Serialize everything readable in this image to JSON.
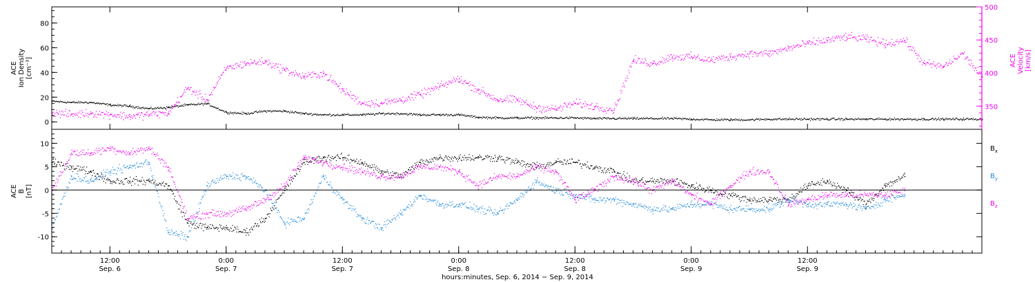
{
  "chart_data": [
    {
      "type": "scatter",
      "panel": "top",
      "ylabel": [
        "ACE",
        "Ion Density",
        "[cm⁻³]"
      ],
      "y2label": [
        "ACE",
        "Velocity",
        "[km/s]"
      ],
      "ylim": [
        -6,
        93
      ],
      "yticks": [
        0,
        20,
        40,
        60,
        80
      ],
      "y2lim": [
        315,
        500
      ],
      "y2ticks": [
        350,
        400,
        450,
        500
      ],
      "series": [
        {
          "axis": "left",
          "color": "#000000",
          "x": [
            0,
            2,
            4,
            6,
            8,
            10,
            12,
            14,
            16,
            18,
            20,
            22,
            24,
            26,
            28,
            30,
            32,
            34,
            36,
            38,
            40,
            42,
            44,
            46,
            48,
            50,
            52,
            54,
            56,
            58,
            60,
            62,
            64,
            66,
            68,
            70,
            72,
            74,
            76,
            78,
            80,
            82,
            84,
            86,
            88,
            90,
            92,
            94,
            96
          ],
          "values": [
            17,
            16,
            16,
            14,
            13,
            11,
            12,
            14,
            15,
            8,
            7,
            9,
            9,
            7,
            6,
            6,
            6,
            7,
            7,
            6,
            6,
            6,
            4,
            3.5,
            3.5,
            3.5,
            3.5,
            3.5,
            3,
            3,
            3,
            3,
            3,
            2.5,
            2,
            2,
            2,
            2.5,
            2.5,
            2.5,
            2.5,
            2.5,
            2.5,
            2.5,
            2.5,
            2.5,
            2.5,
            2.5,
            2.5
          ]
        },
        {
          "axis": "right",
          "color": "#ee00ee",
          "x": [
            0,
            2,
            4,
            6,
            8,
            10,
            12,
            14,
            16,
            18,
            20,
            22,
            24,
            26,
            28,
            30,
            32,
            34,
            36,
            38,
            40,
            42,
            44,
            46,
            48,
            50,
            52,
            54,
            56,
            58,
            60,
            62,
            64,
            66,
            68,
            70,
            72,
            74,
            76,
            78,
            80,
            82,
            84,
            86,
            88,
            90,
            92,
            94,
            96
          ],
          "values": [
            340,
            338,
            340,
            338,
            335,
            338,
            340,
            378,
            360,
            408,
            415,
            418,
            405,
            395,
            400,
            375,
            355,
            355,
            360,
            368,
            380,
            392,
            375,
            360,
            360,
            348,
            346,
            355,
            350,
            345,
            420,
            415,
            425,
            425,
            420,
            425,
            430,
            430,
            438,
            445,
            450,
            455,
            452,
            445,
            450,
            415,
            410,
            430,
            395
          ]
        }
      ]
    },
    {
      "type": "scatter",
      "panel": "bottom",
      "ylabel": [
        "ACE",
        "B",
        "[nT]"
      ],
      "ylim": [
        -13.5,
        13
      ],
      "yticks": [
        -10,
        -5,
        0,
        5,
        10
      ],
      "zero_line": true,
      "legend_position": "right",
      "xlabel": "hours:minutes, Sep.  6, 2014 − Sep.  9, 2014",
      "xlim": [
        0,
        96
      ],
      "xticks": [
        {
          "x": 6,
          "time": "12:00",
          "date": "Sep. 6"
        },
        {
          "x": 18,
          "time": "0:00",
          "date": "Sep. 7"
        },
        {
          "x": 30,
          "time": "12:00",
          "date": "Sep. 7"
        },
        {
          "x": 42,
          "time": "0:00",
          "date": "Sep. 8"
        },
        {
          "x": 54,
          "time": "12:00",
          "date": "Sep. 8"
        },
        {
          "x": 66,
          "time": "0:00",
          "date": "Sep. 9"
        },
        {
          "x": 78,
          "time": "12:00",
          "date": "Sep. 9"
        }
      ],
      "series": [
        {
          "name": "B",
          "subscript": "x",
          "color": "#000000",
          "x": [
            0,
            2,
            4,
            6,
            8,
            10,
            12,
            14,
            16,
            18,
            20,
            22,
            24,
            26,
            28,
            30,
            32,
            34,
            36,
            38,
            40,
            42,
            44,
            46,
            48,
            50,
            52,
            54,
            56,
            58,
            60,
            62,
            64,
            66,
            68,
            70,
            72,
            74,
            76,
            78,
            80,
            82,
            84,
            86,
            88
          ],
          "values": [
            6,
            5,
            4,
            2,
            2,
            2,
            1,
            -7,
            -8,
            -8,
            -9,
            -6,
            0,
            6,
            7,
            7,
            6,
            4,
            3,
            6,
            7,
            7,
            7,
            7,
            6,
            5,
            6,
            6,
            5,
            4,
            2,
            2,
            2,
            1,
            0,
            -1,
            -2,
            -2,
            -2,
            1,
            2,
            0,
            -3,
            1,
            3
          ]
        },
        {
          "name": "B",
          "subscript": "y",
          "color": "#1e88dc",
          "x": [
            0,
            2,
            4,
            6,
            8,
            10,
            12,
            14,
            16,
            18,
            20,
            22,
            24,
            26,
            28,
            30,
            32,
            34,
            36,
            38,
            40,
            42,
            44,
            46,
            48,
            50,
            52,
            54,
            56,
            58,
            60,
            62,
            64,
            66,
            68,
            70,
            72,
            74,
            76,
            78,
            80,
            82,
            84,
            86,
            88
          ],
          "values": [
            -8,
            3,
            2,
            4,
            5,
            6,
            -9,
            -10,
            1,
            3,
            3,
            0,
            -7,
            -6,
            3,
            -2,
            -6,
            -8,
            -5,
            -1,
            -3,
            -3,
            -4,
            -5,
            -2,
            2,
            0,
            -1,
            -2,
            -2,
            -3,
            -4,
            -4,
            -3,
            -3,
            -4,
            -4,
            -4,
            -2,
            -3,
            -3,
            -3,
            -4,
            -2,
            -1
          ]
        },
        {
          "name": "B",
          "subscript": "z",
          "color": "#ee00ee",
          "x": [
            0,
            2,
            4,
            6,
            8,
            10,
            12,
            14,
            16,
            18,
            20,
            22,
            24,
            26,
            28,
            30,
            32,
            34,
            36,
            38,
            40,
            42,
            44,
            46,
            48,
            50,
            52,
            54,
            56,
            58,
            60,
            62,
            64,
            66,
            68,
            70,
            72,
            74,
            76,
            78,
            80,
            82,
            84,
            86,
            88
          ],
          "values": [
            0,
            8,
            8,
            9,
            8,
            9,
            5,
            -6,
            -5,
            -5,
            -4,
            -2,
            1,
            7,
            6,
            5,
            4,
            3,
            3,
            5,
            5,
            4,
            1,
            3,
            3,
            5,
            4,
            -2,
            0,
            3,
            2,
            0,
            2,
            -1,
            -3,
            1,
            4,
            4,
            -3,
            -2,
            -1,
            -1,
            -1,
            -1,
            0
          ]
        }
      ]
    }
  ]
}
